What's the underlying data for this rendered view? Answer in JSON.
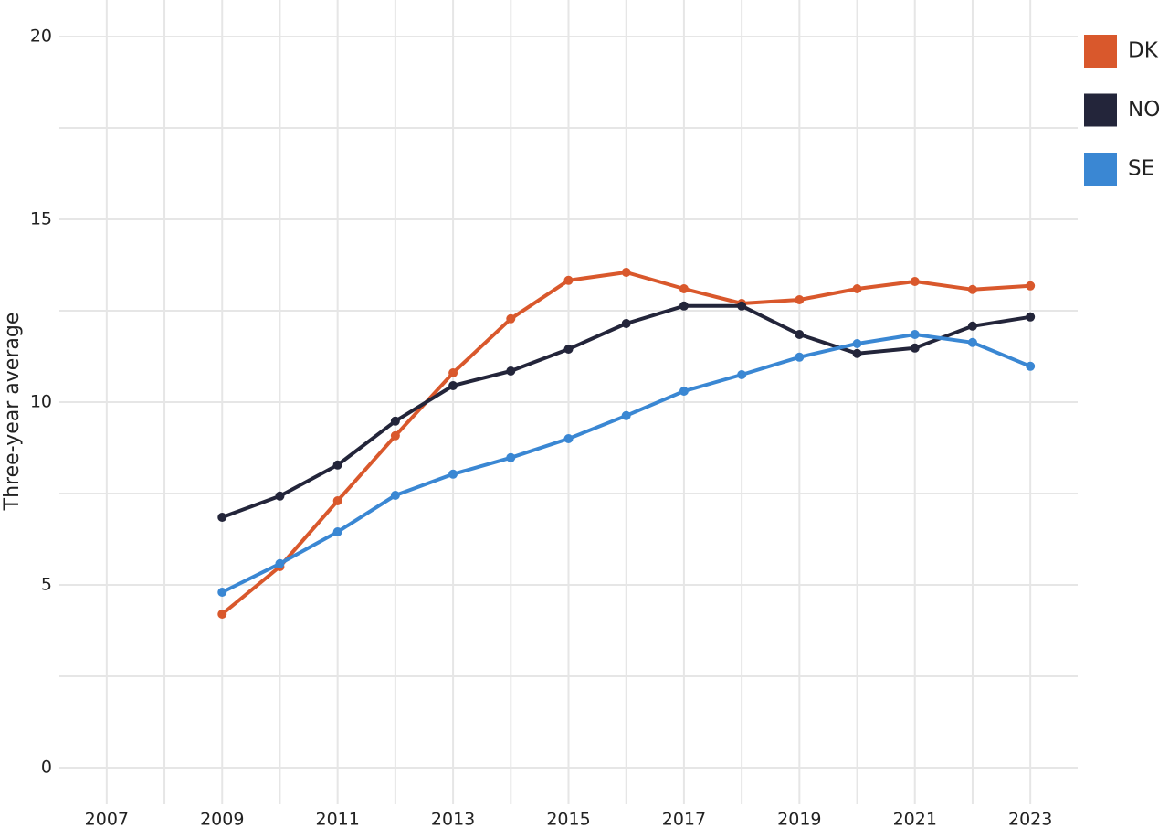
{
  "chart_data": {
    "type": "line",
    "y_label": "Three-year average",
    "x": [
      2009,
      2010,
      2011,
      2012,
      2013,
      2014,
      2015,
      2016,
      2017,
      2018,
      2019,
      2020,
      2021,
      2022,
      2023
    ],
    "series": [
      {
        "name": "DK",
        "color": "#d9582c",
        "values": [
          4.2,
          5.5,
          7.3,
          9.08,
          10.8,
          12.28,
          13.33,
          13.55,
          13.1,
          12.7,
          12.8,
          13.1,
          13.3,
          13.08,
          13.18
        ]
      },
      {
        "name": "NO",
        "color": "#23253a",
        "values": [
          6.85,
          7.43,
          8.28,
          9.48,
          10.45,
          10.85,
          11.45,
          12.15,
          12.63,
          12.63,
          11.85,
          11.33,
          11.48,
          12.08,
          12.33
        ]
      },
      {
        "name": "SE",
        "color": "#3a87d3",
        "values": [
          4.8,
          5.58,
          6.45,
          7.45,
          8.03,
          8.48,
          9.0,
          9.63,
          10.3,
          10.75,
          11.23,
          11.6,
          11.85,
          11.63,
          10.98
        ]
      }
    ],
    "xlim": [
      2006.18,
      2023.82
    ],
    "ylim": [
      -1,
      21
    ],
    "xticks": [
      2007,
      2009,
      2011,
      2013,
      2015,
      2017,
      2019,
      2021,
      2023
    ],
    "xminor": [
      2008,
      2010,
      2012,
      2014,
      2016,
      2018,
      2020,
      2022
    ],
    "yticks": [
      0,
      5,
      10,
      15,
      20
    ],
    "yminor": [
      2.5,
      7.5,
      12.5,
      17.5
    ],
    "grid": true,
    "legend": "top-right"
  }
}
